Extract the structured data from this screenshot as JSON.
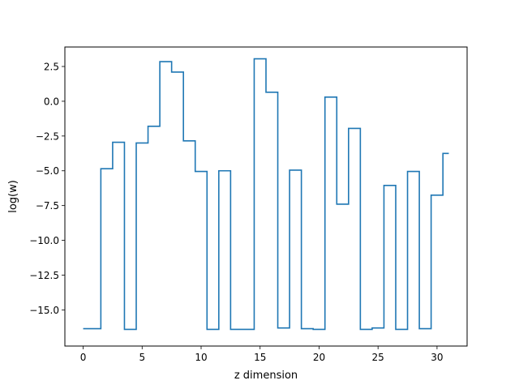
{
  "chart_data": {
    "type": "line",
    "drawstyle": "steps-mid",
    "title": "",
    "xlabel": "z dimension",
    "ylabel": "log(w)",
    "xlim": [
      -1.55,
      32.55
    ],
    "ylim": [
      -17.6,
      3.9
    ],
    "xticks": [
      0,
      5,
      10,
      15,
      20,
      25,
      30
    ],
    "xtick_labels": [
      "0",
      "5",
      "10",
      "15",
      "20",
      "25",
      "30"
    ],
    "yticks": [
      2.5,
      0.0,
      -2.5,
      -5.0,
      -7.5,
      -10.0,
      -12.5,
      -15.0
    ],
    "ytick_labels": [
      "2.5",
      "0.0",
      "−2.5",
      "−5.0",
      "−7.5",
      "−10.0",
      "−12.5",
      "−15.0"
    ],
    "grid": false,
    "series": [
      {
        "color": "#1f77b4",
        "x": [
          0,
          1,
          2,
          3,
          4,
          5,
          6,
          7,
          8,
          9,
          10,
          11,
          12,
          13,
          14,
          15,
          16,
          17,
          18,
          19,
          20,
          21,
          22,
          23,
          24,
          25,
          26,
          27,
          28,
          29,
          30,
          31
        ],
        "y": [
          -16.35,
          -16.35,
          -4.85,
          -2.95,
          -16.4,
          -3.0,
          -1.8,
          2.85,
          2.1,
          -2.85,
          -5.05,
          -16.4,
          -5.0,
          -16.4,
          -16.4,
          3.05,
          0.65,
          -16.3,
          -4.95,
          -16.35,
          -16.4,
          0.3,
          -7.4,
          -1.95,
          -16.4,
          -16.3,
          -6.05,
          -16.4,
          -5.05,
          -16.35,
          -6.75,
          -3.75
        ]
      }
    ]
  }
}
